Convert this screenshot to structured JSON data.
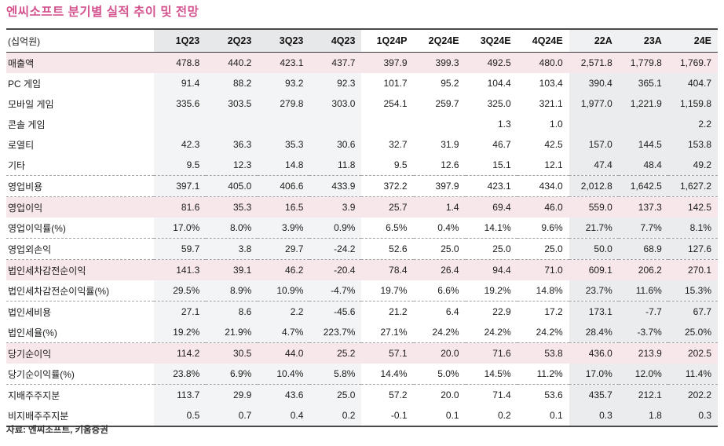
{
  "title": "엔씨소프트 분기별 실적 추이 및 전망",
  "footer": "자료: 엔씨소프트, 키움증권",
  "colors": {
    "title_accent": "#d3548e",
    "highlight_row": "#f7e6ea",
    "actual_band": "#f3f4f5",
    "annual_band": "#ebeced",
    "header_band": "#e7e8ea"
  },
  "table": {
    "unit_label": "(십억원)",
    "columns": [
      {
        "label": "1Q23",
        "group": "actual"
      },
      {
        "label": "2Q23",
        "group": "actual"
      },
      {
        "label": "3Q23",
        "group": "actual"
      },
      {
        "label": "4Q23",
        "group": "actual"
      },
      {
        "label": "1Q24P",
        "group": "forecast"
      },
      {
        "label": "2Q24E",
        "group": "forecast"
      },
      {
        "label": "3Q24E",
        "group": "forecast"
      },
      {
        "label": "4Q24E",
        "group": "forecast"
      },
      {
        "label": "22A",
        "group": "annual"
      },
      {
        "label": "23A",
        "group": "annual"
      },
      {
        "label": "24E",
        "group": "annual"
      }
    ],
    "rows": [
      {
        "label": "매출액",
        "highlight": true,
        "dashed_after": false,
        "values": [
          "478.8",
          "440.2",
          "423.1",
          "437.7",
          "397.9",
          "399.3",
          "492.5",
          "480.0",
          "2,571.8",
          "1,779.8",
          "1,769.7"
        ]
      },
      {
        "label": "PC 게임",
        "highlight": false,
        "dashed_after": false,
        "values": [
          "91.4",
          "88.2",
          "93.2",
          "92.3",
          "101.7",
          "95.2",
          "104.4",
          "103.4",
          "390.4",
          "365.1",
          "404.7"
        ]
      },
      {
        "label": "모바일 게임",
        "highlight": false,
        "dashed_after": false,
        "values": [
          "335.6",
          "303.5",
          "279.8",
          "303.0",
          "254.1",
          "259.7",
          "325.0",
          "321.1",
          "1,977.0",
          "1,221.9",
          "1,159.8"
        ]
      },
      {
        "label": "콘솔 게임",
        "highlight": false,
        "dashed_after": false,
        "values": [
          "",
          "",
          "",
          "",
          "",
          "",
          "1.3",
          "1.0",
          "",
          "",
          "2.2"
        ]
      },
      {
        "label": "로열티",
        "highlight": false,
        "dashed_after": false,
        "values": [
          "42.3",
          "36.3",
          "35.3",
          "30.6",
          "32.7",
          "31.9",
          "46.7",
          "42.5",
          "157.0",
          "144.5",
          "153.8"
        ]
      },
      {
        "label": "기타",
        "highlight": false,
        "dashed_after": true,
        "values": [
          "9.5",
          "12.3",
          "14.8",
          "11.8",
          "9.5",
          "12.6",
          "15.1",
          "12.1",
          "47.4",
          "48.4",
          "49.2"
        ]
      },
      {
        "label": "영업비용",
        "highlight": false,
        "dashed_after": true,
        "values": [
          "397.1",
          "405.0",
          "406.6",
          "433.9",
          "372.2",
          "397.9",
          "423.1",
          "434.0",
          "2,012.8",
          "1,642.5",
          "1,627.2"
        ]
      },
      {
        "label": "영업이익",
        "highlight": true,
        "dashed_after": false,
        "values": [
          "81.6",
          "35.3",
          "16.5",
          "3.9",
          "25.7",
          "1.4",
          "69.4",
          "46.0",
          "559.0",
          "137.3",
          "142.5"
        ]
      },
      {
        "label": "영업이익률(%)",
        "highlight": false,
        "dashed_after": true,
        "values": [
          "17.0%",
          "8.0%",
          "3.9%",
          "0.9%",
          "6.5%",
          "0.4%",
          "14.1%",
          "9.6%",
          "21.7%",
          "7.7%",
          "8.1%"
        ]
      },
      {
        "label": "영업외손익",
        "highlight": false,
        "dashed_after": true,
        "values": [
          "59.7",
          "3.8",
          "29.7",
          "-24.2",
          "52.6",
          "25.0",
          "25.0",
          "25.0",
          "50.0",
          "68.9",
          "127.6"
        ]
      },
      {
        "label": "법인세차감전순이익",
        "highlight": true,
        "dashed_after": false,
        "values": [
          "141.3",
          "39.1",
          "46.2",
          "-20.4",
          "78.4",
          "26.4",
          "94.4",
          "71.0",
          "609.1",
          "206.2",
          "270.1"
        ]
      },
      {
        "label": "법인세차감전순이익률(%)",
        "highlight": false,
        "dashed_after": true,
        "values": [
          "29.5%",
          "8.9%",
          "10.9%",
          "-4.7%",
          "19.7%",
          "6.6%",
          "19.2%",
          "14.8%",
          "23.7%",
          "11.6%",
          "15.3%"
        ]
      },
      {
        "label": "법인세비용",
        "highlight": false,
        "dashed_after": false,
        "values": [
          "27.1",
          "8.6",
          "2.2",
          "-45.6",
          "21.2",
          "6.4",
          "22.9",
          "17.2",
          "173.1",
          "-7.7",
          "67.7"
        ]
      },
      {
        "label": "법인세율(%)",
        "highlight": false,
        "dashed_after": true,
        "values": [
          "19.2%",
          "21.9%",
          "4.7%",
          "223.7%",
          "27.1%",
          "24.2%",
          "24.2%",
          "24.2%",
          "28.4%",
          "-3.7%",
          "25.0%"
        ]
      },
      {
        "label": "당기순이익",
        "highlight": true,
        "dashed_after": false,
        "values": [
          "114.2",
          "30.5",
          "44.0",
          "25.2",
          "57.1",
          "20.0",
          "71.6",
          "53.8",
          "436.0",
          "213.9",
          "202.5"
        ]
      },
      {
        "label": "당기순이익률(%)",
        "highlight": false,
        "dashed_after": true,
        "values": [
          "23.8%",
          "6.9%",
          "10.4%",
          "5.8%",
          "14.4%",
          "5.0%",
          "14.5%",
          "11.2%",
          "17.0%",
          "12.0%",
          "11.4%"
        ]
      },
      {
        "label": "지배주주지분",
        "highlight": false,
        "dashed_after": false,
        "values": [
          "113.7",
          "29.9",
          "43.6",
          "25.0",
          "57.2",
          "20.0",
          "71.4",
          "53.6",
          "435.7",
          "212.1",
          "202.2"
        ]
      },
      {
        "label": "비지배주주지분",
        "highlight": false,
        "dashed_after": false,
        "values": [
          "0.5",
          "0.7",
          "0.4",
          "0.2",
          "-0.1",
          "0.1",
          "0.2",
          "0.1",
          "0.3",
          "1.8",
          "0.3"
        ]
      }
    ]
  }
}
